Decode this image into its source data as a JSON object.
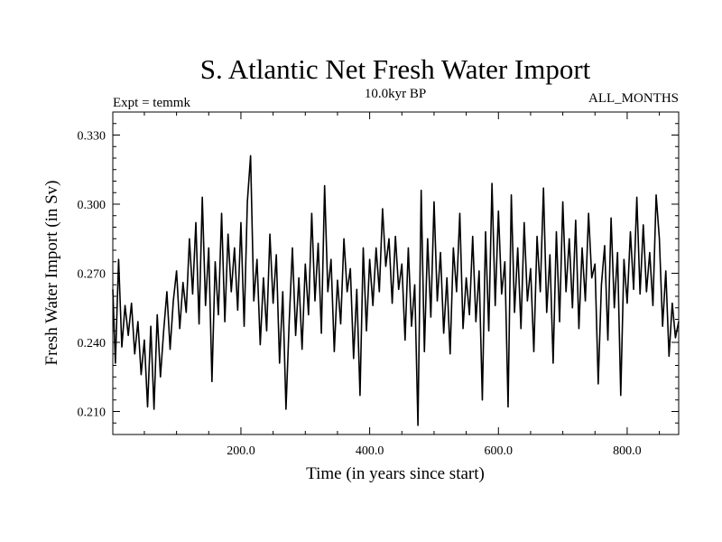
{
  "chart_data": {
    "type": "line",
    "title": "S. Atlantic Net Fresh Water Import",
    "subtitle_left": "Expt = temmk",
    "subtitle_center": "10.0kyr BP",
    "subtitle_right": "ALL_MONTHS",
    "xlabel": "Time (in years since start)",
    "ylabel": "Fresh Water Import (in Sv)",
    "xlim": [
      1,
      880
    ],
    "ylim": [
      0.2,
      0.34
    ],
    "xticks": [
      200,
      400,
      600,
      800
    ],
    "xtick_labels": [
      "200.0",
      "400.0",
      "600.0",
      "800.0"
    ],
    "yticks": [
      0.21,
      0.24,
      0.27,
      0.3,
      0.33
    ],
    "ytick_labels": [
      "0.210",
      "0.240",
      "0.270",
      "0.300",
      "0.330"
    ],
    "x_minor_step": 50,
    "y_minor_step": 0.005,
    "series": [
      {
        "name": "Fresh Water Import",
        "x": [
          1,
          5,
          10,
          15,
          20,
          25,
          30,
          35,
          40,
          45,
          50,
          55,
          60,
          65,
          70,
          75,
          80,
          85,
          90,
          95,
          100,
          105,
          110,
          115,
          120,
          125,
          130,
          135,
          140,
          145,
          150,
          155,
          160,
          165,
          170,
          175,
          180,
          185,
          190,
          195,
          200,
          205,
          210,
          215,
          220,
          225,
          230,
          235,
          240,
          245,
          250,
          255,
          260,
          265,
          270,
          275,
          280,
          285,
          290,
          295,
          300,
          305,
          310,
          315,
          320,
          325,
          330,
          335,
          340,
          345,
          350,
          355,
          360,
          365,
          370,
          375,
          380,
          385,
          390,
          395,
          400,
          405,
          410,
          415,
          420,
          425,
          430,
          435,
          440,
          445,
          450,
          455,
          460,
          465,
          470,
          475,
          480,
          485,
          490,
          495,
          500,
          505,
          510,
          515,
          520,
          525,
          530,
          535,
          540,
          545,
          550,
          555,
          560,
          565,
          570,
          575,
          580,
          585,
          590,
          595,
          600,
          605,
          610,
          615,
          620,
          625,
          630,
          635,
          640,
          645,
          650,
          655,
          660,
          665,
          670,
          675,
          680,
          685,
          690,
          695,
          700,
          705,
          710,
          715,
          720,
          725,
          730,
          735,
          740,
          745,
          750,
          755,
          760,
          765,
          770,
          775,
          780,
          785,
          790,
          795,
          800,
          805,
          810,
          815,
          820,
          825,
          830,
          835,
          840,
          845,
          850,
          855,
          860,
          865,
          870,
          875,
          880
        ],
        "values": [
          0.263,
          0.231,
          0.276,
          0.238,
          0.256,
          0.243,
          0.257,
          0.235,
          0.249,
          0.226,
          0.241,
          0.212,
          0.247,
          0.211,
          0.252,
          0.225,
          0.245,
          0.262,
          0.237,
          0.258,
          0.271,
          0.246,
          0.266,
          0.253,
          0.285,
          0.261,
          0.292,
          0.248,
          0.303,
          0.256,
          0.281,
          0.223,
          0.275,
          0.252,
          0.296,
          0.249,
          0.287,
          0.262,
          0.281,
          0.254,
          0.292,
          0.247,
          0.301,
          0.321,
          0.258,
          0.276,
          0.239,
          0.268,
          0.245,
          0.287,
          0.257,
          0.278,
          0.231,
          0.262,
          0.211,
          0.249,
          0.281,
          0.243,
          0.268,
          0.237,
          0.274,
          0.252,
          0.296,
          0.258,
          0.283,
          0.244,
          0.308,
          0.262,
          0.276,
          0.236,
          0.267,
          0.248,
          0.285,
          0.262,
          0.272,
          0.233,
          0.263,
          0.217,
          0.281,
          0.245,
          0.276,
          0.256,
          0.281,
          0.262,
          0.298,
          0.273,
          0.285,
          0.257,
          0.286,
          0.263,
          0.274,
          0.241,
          0.281,
          0.247,
          0.265,
          0.204,
          0.306,
          0.236,
          0.285,
          0.251,
          0.301,
          0.258,
          0.279,
          0.244,
          0.268,
          0.235,
          0.281,
          0.262,
          0.296,
          0.246,
          0.268,
          0.252,
          0.286,
          0.249,
          0.271,
          0.215,
          0.288,
          0.245,
          0.309,
          0.256,
          0.297,
          0.261,
          0.275,
          0.212,
          0.304,
          0.253,
          0.281,
          0.246,
          0.292,
          0.258,
          0.272,
          0.236,
          0.286,
          0.262,
          0.307,
          0.253,
          0.278,
          0.231,
          0.288,
          0.249,
          0.301,
          0.262,
          0.285,
          0.255,
          0.293,
          0.246,
          0.281,
          0.258,
          0.296,
          0.268,
          0.274,
          0.222,
          0.265,
          0.282,
          0.241,
          0.294,
          0.255,
          0.279,
          0.217,
          0.276,
          0.257,
          0.288,
          0.263,
          0.303,
          0.261,
          0.291,
          0.262,
          0.279,
          0.256,
          0.304,
          0.285,
          0.247,
          0.271,
          0.234,
          0.257,
          0.242,
          0.249
        ]
      }
    ]
  }
}
